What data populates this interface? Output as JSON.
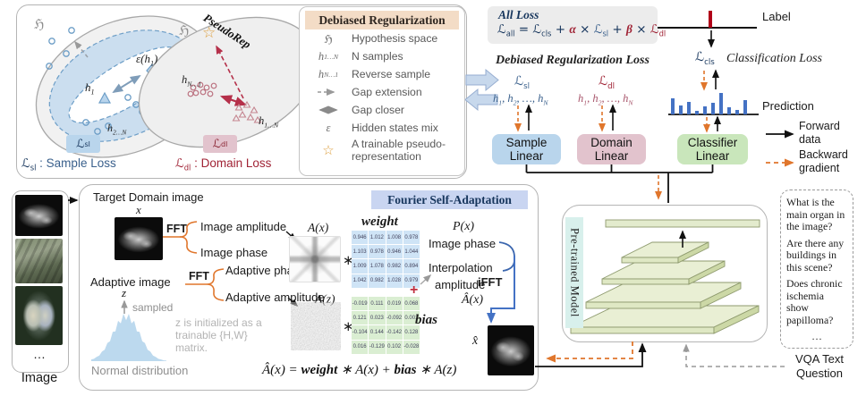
{
  "palette": {
    "sample_blue_bg": "#b9d5ec",
    "domain_pink_bg": "#e2c3cd",
    "classifier_green_bg": "#c9e6bb",
    "legend_header_bg": "#f3dcc6",
    "fourier_header_bg": "#c9d5f1",
    "pretrained_label_bg": "#d8f0ec",
    "weight_matrix_bg": "#cfe4f6",
    "bias_matrix_bg": "#daeed2",
    "allloss_bg": "#ececec",
    "forward_black": "#111111",
    "backward_orange": "#e0762c",
    "gradient_red": "#a02335",
    "sample_blue_text": "#3a608c",
    "prediction_bar_blue": "#4472c4",
    "ifft_blue": "#4472c4",
    "star_orange": "#dd9f3e",
    "label_tick_red": "#b00018"
  },
  "debiased_panel": {
    "hypothesis_symbol": "ℌ",
    "sl": {
      "h1": "h<sub>1</sub>",
      "eps": "ε(h<sub>1</sub>)",
      "h2n": "h<sub>2…N</sub>",
      "badge": "ℒ<sub>sl</sub>",
      "caption_sym": "ℒ<sub>sl</sub>",
      "caption_text": " : Sample Loss"
    },
    "dl": {
      "pseudorep": "PseudoRep",
      "star": "☆",
      "hn1": "h<sub>N…1</sub>",
      "h1n": "h<sub>1…N</sub>",
      "badge": "ℒ<sub>dl</sub>",
      "caption_sym": "ℒ<sub>dl</sub>",
      "caption_text": " : Domain Loss"
    }
  },
  "legend": {
    "title": "Debiased Regularization",
    "rows": [
      {
        "sym": "ℌ",
        "label": "Hypothesis space"
      },
      {
        "sym": "h<sub>1…N</sub>",
        "label": "N samples"
      },
      {
        "sym": "h<sub>N…1</sub>",
        "label": "Reverse sample"
      },
      {
        "sym": "",
        "label": "Gap extension"
      },
      {
        "sym": "",
        "label": "Gap closer"
      },
      {
        "sym": "ε",
        "label": "Hidden states mix"
      },
      {
        "sym": "☆",
        "label": "A trainable pseudo-representation"
      }
    ]
  },
  "all_loss": {
    "title": "All Loss",
    "p1": "ℒ<sub>all</sub> = ℒ<sub>cls</sub> + ",
    "alpha": "α",
    "x1": " × ",
    "lsl": "ℒ<sub>sl</sub>",
    "plus": " + ",
    "beta": "β",
    "x2": " × ",
    "ldl": "ℒ<sub>dl</sub>"
  },
  "classification": {
    "label": "Label",
    "loss_sym": "ℒ<sub>cls</sub>",
    "loss_name": "Classification Loss",
    "prediction": "Prediction",
    "bars": [
      18,
      10,
      14,
      4,
      9,
      13,
      24,
      8,
      5,
      16
    ]
  },
  "reg_loss": {
    "heading": "Debiased Regularization Loss",
    "lsl": "ℒ<sub>sl</sub>",
    "ldl": "ℒ<sub>dl</sub>",
    "h_blue": "h<sub>1</sub>, h<sub>2</sub>, …, h<sub>N</sub>",
    "h_red": "h<sub>1</sub>, h<sub>2</sub>, …, h<sub>N</sub>"
  },
  "linears": {
    "sample": "Sample\nLinear",
    "domain": "Domain\nLinear",
    "classifier": "Classifier\nLinear"
  },
  "flow_legend": {
    "forward": "Forward\ndata",
    "backward": "Backward\ngradient"
  },
  "pretrained": {
    "label": "Pre-trained Model"
  },
  "vqa": {
    "questions": [
      "What is the main organ in the image?",
      "Are there any buildings in this scene?",
      "Does chronic ischemia show papilloma?",
      "…"
    ],
    "caption": "VQA Text\nQuestion"
  },
  "fourier": {
    "title": "Fourier Self-Adaptation",
    "target": "Target Domain image",
    "x": "x",
    "fft1": "FFT",
    "img_amp": "Image amplitude",
    "img_phase": "Image phase",
    "adaptive": "Adaptive image",
    "fft2": "FFT",
    "ad_phase": "Adaptive phase",
    "ad_amp": "Adaptive amplitude",
    "z": "z",
    "sampled": "sampled",
    "z_note": "z is initialized as a trainable {H,W} matrix.",
    "normal": "Normal distribution",
    "ax": "A(x)",
    "az": "A(z)",
    "star1": "∗",
    "star2": "∗",
    "plus": "+",
    "weight_label": "weight",
    "bias_label": "bias",
    "weight": [
      [
        "0.946",
        "1.012",
        "1.008",
        "0.978"
      ],
      [
        "1.103",
        "0.978",
        "0.946",
        "1.044"
      ],
      [
        "1.009",
        "1.078",
        "0.982",
        "0.894"
      ],
      [
        "1.042",
        "0.982",
        "1.028",
        "0.979"
      ]
    ],
    "bias": [
      [
        "-0.019",
        "0.111",
        "0.019",
        "0.068"
      ],
      [
        "0.121",
        "0.023",
        "-0.092",
        "0.001"
      ],
      [
        "-0.104",
        "0.144",
        "-0.142",
        "0.128"
      ],
      [
        "0.016",
        "-0.129",
        "0.102",
        "-0.028"
      ]
    ],
    "px": "P(x)",
    "phase_line": "Image phase",
    "interp": "Interpolation",
    "amp_line": "amplitude",
    "ahat": "Â(x)",
    "ifft": "iFFT",
    "xhat": "x̂",
    "formula_1": "Â(x)  =  ",
    "formula_w": "weight",
    "formula_2": " ∗ A(x) + ",
    "formula_b": "bias",
    "formula_3": " ∗ A(z)"
  },
  "image_column": {
    "dots": "…",
    "label": "Image"
  }
}
